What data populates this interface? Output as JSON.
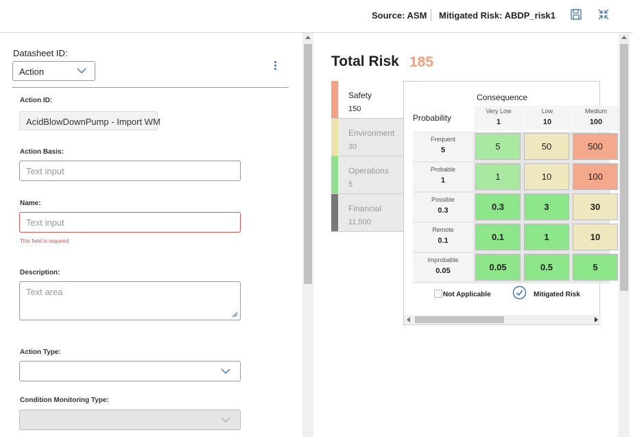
{
  "header": {
    "source": "Source: ASM",
    "mitigated_risk": "Mitigated Risk: ABDP_risk1"
  },
  "datasheet": {
    "label": "Datasheet ID:",
    "selected": "Action"
  },
  "form": {
    "action_id": {
      "label": "Action ID:",
      "value": "AcidBlowDownPump - Import WM"
    },
    "action_basis": {
      "label": "Action Basis:",
      "placeholder": "Text input"
    },
    "name": {
      "label": "Name:",
      "placeholder": "Text input",
      "error": "This field is required"
    },
    "description": {
      "label": "Description:",
      "placeholder": "Text area"
    },
    "action_type": {
      "label": "Action Type:",
      "value": ""
    },
    "condition_monitoring_type": {
      "label": "Condition Monitoring Type:",
      "value": ""
    }
  },
  "risk": {
    "title": "Total Risk",
    "total": "185",
    "categories": [
      {
        "name": "Safety",
        "value": "150",
        "color": "#f4a085"
      },
      {
        "name": "Environment",
        "value": "30",
        "color": "#ede2a8"
      },
      {
        "name": "Operations",
        "value": "5",
        "color": "#8fe08a"
      },
      {
        "name": "Financial",
        "value": "11,500",
        "color": "#777777"
      }
    ],
    "consequence_label": "Consequence",
    "probability_label": "Probability",
    "columns": [
      {
        "name": "Very Low",
        "value": "1"
      },
      {
        "name": "Low",
        "value": "10"
      },
      {
        "name": "Medium",
        "value": "100"
      }
    ],
    "rows": [
      {
        "name": "Frequent",
        "value": "5",
        "cells": [
          "5",
          "50",
          "500"
        ]
      },
      {
        "name": "Probable",
        "value": "1",
        "cells": [
          "1",
          "10",
          "100"
        ]
      },
      {
        "name": "Possible",
        "value": "0.3",
        "cells": [
          "0.3",
          "3",
          "30"
        ]
      },
      {
        "name": "Remote",
        "value": "0.1",
        "cells": [
          "0.1",
          "1",
          "10"
        ]
      },
      {
        "name": "Improbable",
        "value": "0.05",
        "cells": [
          "0.05",
          "0.5",
          "5"
        ]
      }
    ],
    "cell_colors": [
      [
        "#a9e8a0",
        "#efe8be",
        "#f4a88c"
      ],
      [
        "#a9e8a0",
        "#efe8be",
        "#f4a88c"
      ],
      [
        "#8ee68a",
        "#8ee68a",
        "#efe8be"
      ],
      [
        "#8ee68a",
        "#8ee68a",
        "#efe8be"
      ],
      [
        "#8ee68a",
        "#8ee68a",
        "#8ee68a"
      ]
    ],
    "legend": {
      "not_applicable": "Not Applicable",
      "mitigated": "Mitigated Risk"
    }
  }
}
